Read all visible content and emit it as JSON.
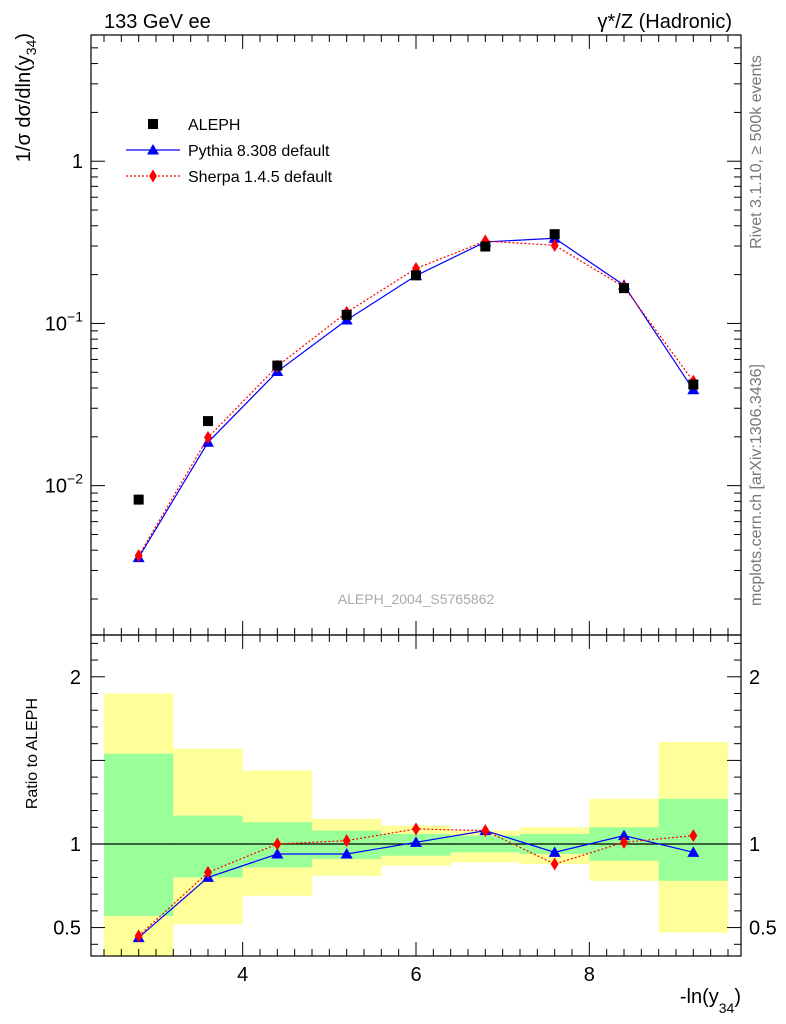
{
  "header": {
    "left_title": "133 GeV ee",
    "right_title": "γ*/Z (Hadronic)",
    "side_label_top": "Rivet 3.1.10, ≥ 500k events",
    "side_label_bottom": "mcplots.cern.ch [arXiv:1306.3436]",
    "analysis_label": "ALEPH_2004_S5765862"
  },
  "chart_data": [
    {
      "type": "scatter",
      "panel": "main",
      "title": "133 GeV ee",
      "ylabel_parts": [
        "1/σ  dσ/dln(y",
        "34",
        ")"
      ],
      "xlabel": "",
      "yscale": "log",
      "ylim": [
        0.0012,
        6.0
      ],
      "xlim": [
        2.25,
        9.75
      ],
      "major_ticks": [
        {
          "value": 0.01,
          "base": "10",
          "exp": "−2"
        },
        {
          "value": 0.1,
          "base": "10",
          "exp": "−1"
        },
        {
          "value": 1,
          "base": "1",
          "exp": ""
        }
      ],
      "legend": [
        {
          "key": "data",
          "label": "ALEPH"
        },
        {
          "key": "pythia",
          "label": "Pythia 8.308 default"
        },
        {
          "key": "sherpa",
          "label": "Sherpa 1.4.5 default"
        }
      ],
      "series": [
        {
          "key": "data",
          "name": "ALEPH",
          "marker": "square",
          "color": "#000000",
          "x": [
            2.8,
            3.6,
            4.4,
            5.2,
            6.0,
            6.8,
            7.6,
            8.4,
            9.2
          ],
          "y": [
            0.0082,
            0.025,
            0.055,
            0.113,
            0.198,
            0.298,
            0.355,
            0.165,
            0.042
          ]
        },
        {
          "key": "pythia",
          "name": "Pythia 8.308 default",
          "marker": "triangle",
          "color": "#0000ff",
          "x": [
            2.8,
            3.6,
            4.4,
            5.2,
            6.0,
            6.8,
            7.6,
            8.4,
            9.2
          ],
          "y": [
            0.0036,
            0.0185,
            0.0505,
            0.105,
            0.197,
            0.318,
            0.335,
            0.172,
            0.039
          ]
        },
        {
          "key": "sherpa",
          "name": "Sherpa 1.4.5 default",
          "marker": "diamond",
          "color": "#ff0000",
          "x": [
            2.8,
            3.6,
            4.4,
            5.2,
            6.0,
            6.8,
            7.6,
            8.4,
            9.2
          ],
          "y": [
            0.0037,
            0.0198,
            0.0545,
            0.117,
            0.218,
            0.322,
            0.303,
            0.168,
            0.044
          ]
        }
      ]
    },
    {
      "type": "scatter",
      "panel": "ratio",
      "ylabel": "Ratio to ALEPH",
      "xlabel_parts": [
        "-ln(y",
        "34",
        ")"
      ],
      "ylim": [
        0.33,
        2.25
      ],
      "xlim": [
        2.25,
        9.75
      ],
      "y_tick_labels": [
        {
          "value": 0.5,
          "label": "0.5"
        },
        {
          "value": 1,
          "label": "1"
        },
        {
          "value": 2,
          "label": "2"
        }
      ],
      "x_tick_labels": [
        {
          "value": 4,
          "label": "4"
        },
        {
          "value": 6,
          "label": "6"
        },
        {
          "value": 8,
          "label": "8"
        }
      ],
      "reference_line": 1,
      "bands": [
        {
          "x0": 2.4,
          "x1": 3.2,
          "yellow": [
            0.33,
            1.9
          ],
          "green": [
            0.57,
            1.54
          ]
        },
        {
          "x0": 3.2,
          "x1": 4.0,
          "yellow": [
            0.52,
            1.57
          ],
          "green": [
            0.8,
            1.17
          ]
        },
        {
          "x0": 4.0,
          "x1": 4.8,
          "yellow": [
            0.69,
            1.44
          ],
          "green": [
            0.86,
            1.13
          ]
        },
        {
          "x0": 4.8,
          "x1": 5.6,
          "yellow": [
            0.81,
            1.15
          ],
          "green": [
            0.91,
            1.08
          ]
        },
        {
          "x0": 5.6,
          "x1": 6.4,
          "yellow": [
            0.87,
            1.11
          ],
          "green": [
            0.93,
            1.06
          ]
        },
        {
          "x0": 6.4,
          "x1": 7.2,
          "yellow": [
            0.89,
            1.08
          ],
          "green": [
            0.95,
            1.05
          ]
        },
        {
          "x0": 7.2,
          "x1": 8.0,
          "yellow": [
            0.88,
            1.1
          ],
          "green": [
            0.94,
            1.06
          ]
        },
        {
          "x0": 8.0,
          "x1": 8.8,
          "yellow": [
            0.78,
            1.27
          ],
          "green": [
            0.9,
            1.1
          ]
        },
        {
          "x0": 8.8,
          "x1": 9.6,
          "yellow": [
            0.47,
            1.61
          ],
          "green": [
            0.78,
            1.27
          ]
        }
      ],
      "series": [
        {
          "key": "pythia",
          "name": "Pythia 8.308 default",
          "marker": "triangle",
          "color": "#0000ff",
          "x": [
            2.8,
            3.6,
            4.4,
            5.2,
            6.0,
            6.8,
            7.6,
            8.4,
            9.2
          ],
          "y": [
            0.44,
            0.8,
            0.94,
            0.94,
            1.01,
            1.08,
            0.95,
            1.05,
            0.95
          ]
        },
        {
          "key": "sherpa",
          "name": "Sherpa 1.4.5 default",
          "marker": "diamond",
          "color": "#ff0000",
          "x": [
            2.8,
            3.6,
            4.4,
            5.2,
            6.0,
            6.8,
            7.6,
            8.4,
            9.2
          ],
          "y": [
            0.45,
            0.83,
            1.0,
            1.02,
            1.09,
            1.08,
            0.88,
            1.01,
            1.05
          ]
        }
      ]
    }
  ],
  "colors": {
    "band_yellow": "#ffff99",
    "band_green": "#99ff99",
    "axis": "#000000",
    "side_text": "#777777",
    "analysis_text": "#aaaaaa"
  }
}
